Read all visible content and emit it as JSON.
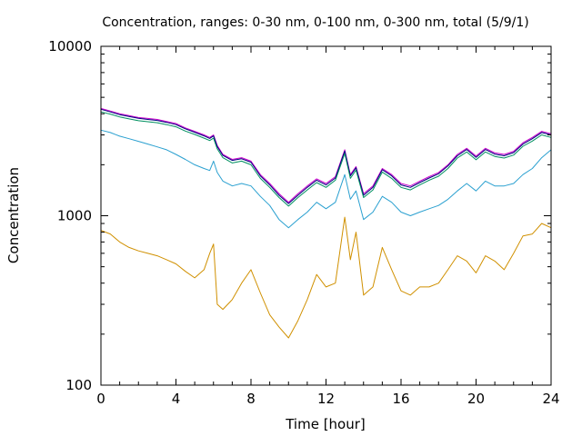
{
  "chart_data": {
    "type": "line",
    "title": "Concentration, ranges: 0-30 nm, 0-100 nm, 0-300 nm, total (5/9/1)",
    "xlabel": "Time [hour]",
    "ylabel": "Concentration",
    "xlim": [
      0,
      24
    ],
    "ylim": [
      100,
      10000
    ],
    "yscale": "log",
    "xticks": [
      0,
      4,
      8,
      12,
      16,
      20,
      24
    ],
    "yticks": [
      100,
      1000,
      10000
    ],
    "grid": false,
    "legend": "none",
    "x": [
      0,
      0.5,
      1,
      1.5,
      2,
      2.5,
      3,
      3.5,
      4,
      4.5,
      5,
      5.5,
      5.8,
      6,
      6.2,
      6.5,
      7,
      7.5,
      8,
      8.5,
      9,
      9.5,
      10,
      10.5,
      11,
      11.5,
      12,
      12.5,
      13,
      13.3,
      13.6,
      14,
      14.5,
      15,
      15.5,
      16,
      16.5,
      17,
      17.5,
      18,
      18.5,
      19,
      19.5,
      20,
      20.5,
      21,
      21.5,
      22,
      22.5,
      23,
      23.5,
      24
    ],
    "series": [
      {
        "color": "#cc00cc",
        "values": [
          4300,
          4150,
          4000,
          3900,
          3800,
          3750,
          3700,
          3600,
          3500,
          3300,
          3150,
          3000,
          2900,
          3000,
          2600,
          2300,
          2150,
          2200,
          2100,
          1750,
          1550,
          1350,
          1200,
          1350,
          1500,
          1650,
          1550,
          1700,
          2450,
          1750,
          1950,
          1350,
          1500,
          1900,
          1750,
          1550,
          1500,
          1600,
          1700,
          1800,
          2000,
          2300,
          2500,
          2250,
          2500,
          2350,
          2300,
          2400,
          2700,
          2900,
          3150,
          3050
        ]
      },
      {
        "color": "#000080",
        "values": [
          4250,
          4100,
          3950,
          3850,
          3760,
          3700,
          3650,
          3560,
          3450,
          3260,
          3110,
          2960,
          2860,
          2960,
          2560,
          2270,
          2120,
          2170,
          2070,
          1720,
          1520,
          1320,
          1180,
          1320,
          1470,
          1620,
          1520,
          1670,
          2410,
          1720,
          1920,
          1320,
          1470,
          1870,
          1720,
          1520,
          1470,
          1570,
          1670,
          1770,
          1970,
          2260,
          2460,
          2210,
          2460,
          2310,
          2260,
          2360,
          2650,
          2850,
          3100,
          3000
        ]
      },
      {
        "color": "#009060",
        "values": [
          4100,
          3980,
          3830,
          3730,
          3640,
          3590,
          3540,
          3450,
          3350,
          3160,
          3020,
          2870,
          2780,
          2870,
          2480,
          2200,
          2050,
          2100,
          2000,
          1660,
          1470,
          1280,
          1140,
          1280,
          1420,
          1570,
          1470,
          1620,
          2330,
          1660,
          1860,
          1280,
          1420,
          1810,
          1660,
          1470,
          1420,
          1520,
          1620,
          1710,
          1900,
          2190,
          2380,
          2140,
          2380,
          2240,
          2190,
          2280,
          2570,
          2760,
          3000,
          2900
        ]
      },
      {
        "color": "#2aa0d0",
        "values": [
          3200,
          3100,
          2950,
          2850,
          2750,
          2650,
          2550,
          2450,
          2300,
          2150,
          2000,
          1900,
          1850,
          2100,
          1800,
          1600,
          1500,
          1550,
          1500,
          1300,
          1150,
          950,
          850,
          950,
          1050,
          1200,
          1100,
          1200,
          1750,
          1250,
          1400,
          950,
          1050,
          1300,
          1200,
          1050,
          1000,
          1050,
          1100,
          1150,
          1250,
          1400,
          1550,
          1400,
          1600,
          1500,
          1500,
          1550,
          1750,
          1900,
          2200,
          2450
        ]
      },
      {
        "color": "#d09000",
        "values": [
          820,
          780,
          700,
          650,
          620,
          600,
          580,
          550,
          520,
          470,
          430,
          480,
          600,
          680,
          300,
          280,
          320,
          400,
          480,
          350,
          260,
          220,
          190,
          240,
          320,
          450,
          380,
          400,
          980,
          550,
          800,
          340,
          380,
          650,
          480,
          360,
          340,
          380,
          380,
          400,
          480,
          580,
          540,
          460,
          580,
          540,
          480,
          600,
          760,
          780,
          900,
          850
        ]
      }
    ]
  }
}
